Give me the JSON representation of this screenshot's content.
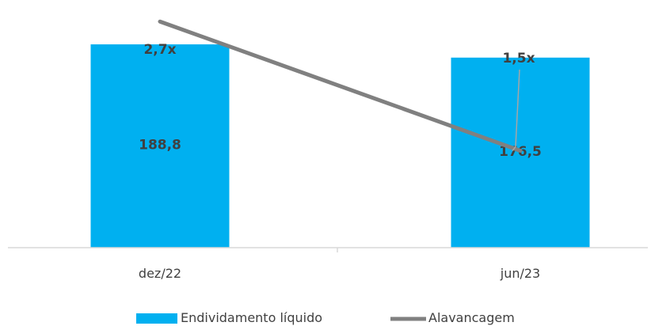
{
  "chart_data": {
    "type": "bar",
    "categories": [
      "dez/22",
      "jun/23"
    ],
    "series": [
      {
        "name": "Endividamento líquido",
        "type": "bar",
        "values": [
          188.8,
          176.5
        ],
        "labels": [
          "188,8",
          "176,5"
        ],
        "color": "#00B0F0"
      },
      {
        "name": "Alavancagem",
        "type": "line",
        "axis": "secondary",
        "values": [
          2.7,
          1.5
        ],
        "labels": [
          "2,7x",
          "1,5x"
        ],
        "color": "#808080"
      }
    ],
    "title": "",
    "xlabel": "",
    "ylabel": "",
    "ylim": [
      0,
      230
    ],
    "y2lim": [
      0.6,
      2.9
    ],
    "grid": false,
    "legend_position": "bottom"
  }
}
